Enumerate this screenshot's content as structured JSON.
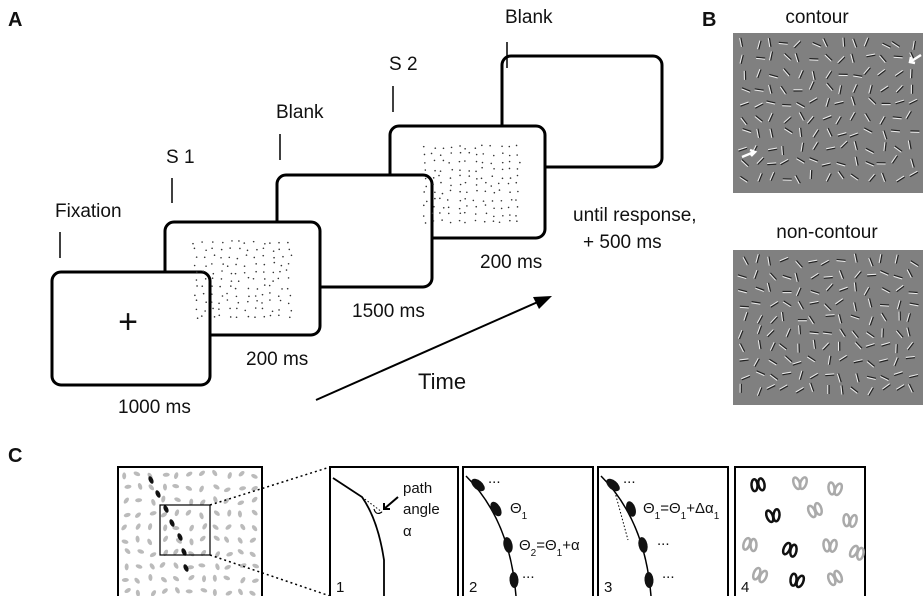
{
  "panel_a": {
    "label": "A",
    "events": [
      {
        "name": "Fixation",
        "duration": "1000 ms"
      },
      {
        "name": "S 1",
        "duration": "200 ms"
      },
      {
        "name": "Blank",
        "duration": "1500 ms"
      },
      {
        "name": "S 2",
        "duration": "200 ms"
      },
      {
        "name": "Blank",
        "duration": [
          "until response,",
          "+ 500 ms"
        ]
      }
    ],
    "fixation_symbol": "+",
    "axis_label": "Time"
  },
  "panel_b": {
    "label": "B",
    "conditions": [
      "contour",
      "non-contour"
    ]
  },
  "panel_c": {
    "label": "C",
    "steps": [
      {
        "number": "1",
        "annotation": [
          "path",
          "angle",
          "α"
        ]
      },
      {
        "number": "2",
        "theta_1": [
          "Θ",
          "1"
        ],
        "theta_2": [
          "Θ",
          "2",
          "=Θ",
          "1",
          "+α"
        ],
        "ellipsis": "..."
      },
      {
        "number": "3",
        "theta_1": [
          "Θ",
          "1",
          "=Θ",
          "1",
          "+Δα",
          "1"
        ],
        "ellipsis": "..."
      },
      {
        "number": "4"
      }
    ]
  }
}
